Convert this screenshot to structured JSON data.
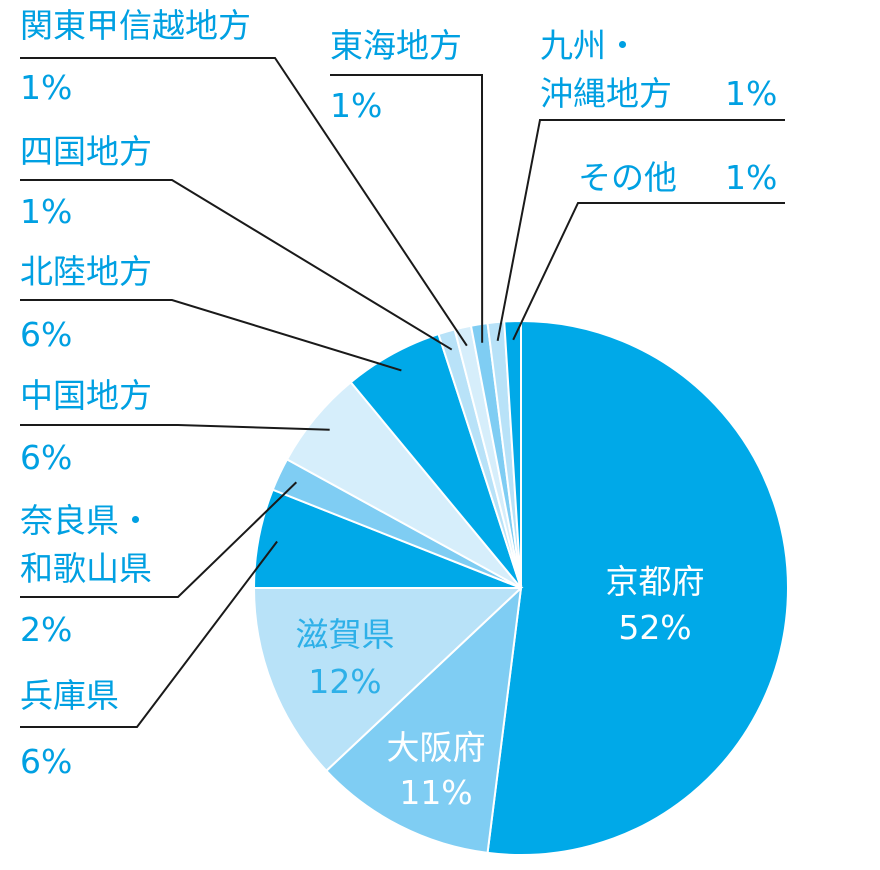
{
  "chart_data": {
    "type": "pie",
    "categories": [
      "京都府",
      "大阪府",
      "滋賀県",
      "兵庫県",
      "奈良県・\n和歌山県",
      "中国地方",
      "北陸地方",
      "四国地方",
      "関東甲信越地方",
      "東海地方",
      "九州・\n沖縄地方",
      "その他"
    ],
    "values": [
      52,
      11,
      12,
      6,
      2,
      6,
      6,
      1,
      1,
      1,
      1,
      1
    ],
    "value_labels": [
      "52%",
      "11%",
      "12%",
      "6%",
      "2%",
      "6%",
      "6%",
      "1%",
      "1%",
      "1%",
      "1%",
      "1%"
    ],
    "colors": [
      "#00a9e8",
      "#7fcdf3",
      "#b8e2f8",
      "#00a9e8",
      "#7fcdf3",
      "#d6eefb",
      "#00a9e8",
      "#b8e2f8",
      "#d6eefb",
      "#7fcdf3",
      "#b8e2f8",
      "#00a9e8"
    ]
  }
}
